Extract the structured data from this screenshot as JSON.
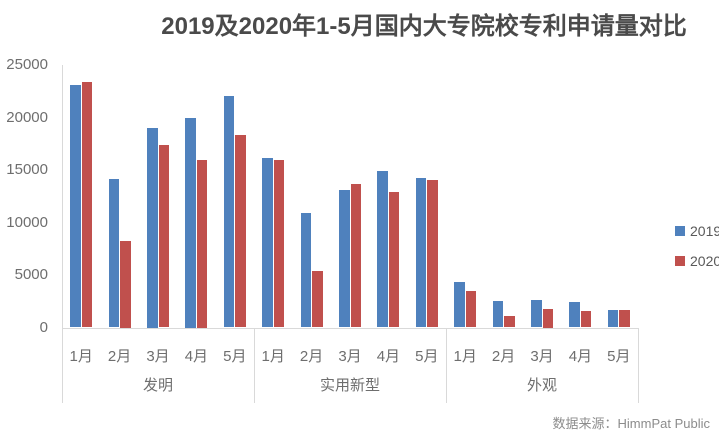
{
  "title": "2019及2020年1-5月国内大专院校专利申请量对比",
  "source_label": "数据来源：HimmPat Public",
  "colors": {
    "series_2019": "#4f81bd",
    "series_2020": "#c0504d",
    "axis_line": "#d9d9d9",
    "axis_text": "#6e6e6e",
    "title_text": "#4a4a4a",
    "source_text": "#8c8c8c"
  },
  "chart_data": {
    "type": "bar",
    "title": "2019及2020年1-5月国内大专院校专利申请量对比",
    "group_labels": [
      "发明",
      "实用新型",
      "外观"
    ],
    "month_labels": [
      "1月",
      "2月",
      "3月",
      "4月",
      "5月"
    ],
    "series": [
      {
        "name": "2019",
        "color": "#4f81bd",
        "values": [
          23100,
          14100,
          19000,
          20000,
          22050,
          16100,
          10900,
          13100,
          14950,
          14200,
          4300,
          2550,
          2650,
          2450,
          1700
        ]
      },
      {
        "name": "2020",
        "color": "#c0504d",
        "values": [
          23350,
          8250,
          17400,
          16000,
          18350,
          15950,
          5400,
          13700,
          12900,
          14050,
          3450,
          1100,
          1750,
          1600,
          1650
        ]
      }
    ],
    "ylim": [
      0,
      25000
    ],
    "yticks": [
      0,
      5000,
      10000,
      15000,
      20000,
      25000
    ],
    "grid": false,
    "legend_position": "right"
  }
}
